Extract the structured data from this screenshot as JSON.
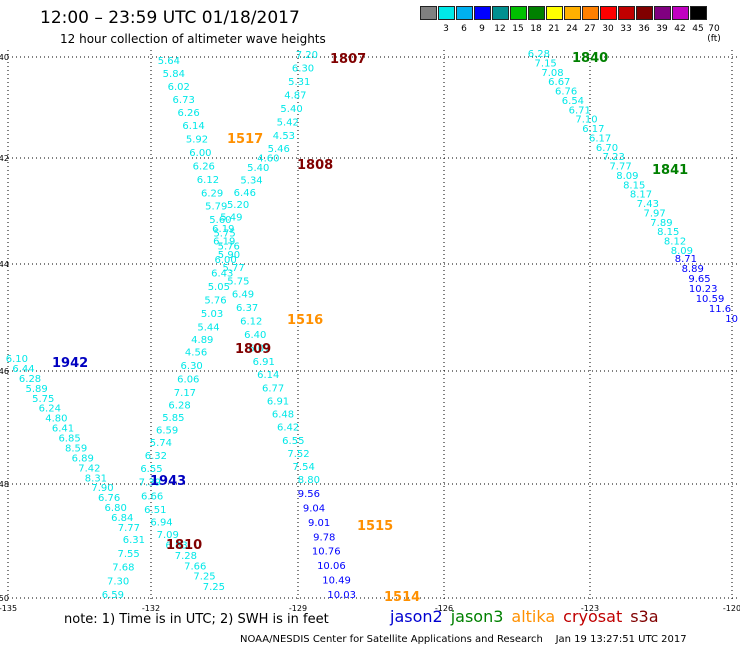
{
  "header": {
    "title": "12:00 – 23:59 UTC 01/18/2017",
    "subtitle": "12 hour collection of altimeter wave heights"
  },
  "colorbar": {
    "unit": "(ft)",
    "colors": [
      "#808080",
      "#00e8e8",
      "#00b0f0",
      "#0000ff",
      "#009090",
      "#00c000",
      "#008000",
      "#ffff00",
      "#ffb000",
      "#ff8000",
      "#ff0000",
      "#c00000",
      "#800000",
      "#800080",
      "#c000c0",
      "#000000"
    ],
    "labels": [
      "3",
      "6",
      "9",
      "12",
      "15",
      "18",
      "21",
      "24",
      "27",
      "30",
      "33",
      "36",
      "39",
      "42",
      "45",
      "70"
    ]
  },
  "axes": {
    "x_ticks": [
      "-135",
      "-132",
      "-129",
      "-126",
      "-123",
      "-120"
    ],
    "y_ticks": [
      "-40",
      "-42",
      "-44",
      "-46",
      "-48",
      "-50"
    ]
  },
  "tracks": [
    {
      "id": "1807",
      "color": "#00e8e8",
      "time": "1807",
      "time_color": "#800000",
      "values": [
        "7.20",
        "6.30",
        "5.31",
        "4.87",
        "5.40",
        "5.42",
        "4.53",
        "5.46",
        "4.60",
        "5.40",
        "5.34",
        "6.46",
        "5.20",
        "5.49",
        "6.19",
        "6.19",
        "5.90",
        "5.77",
        "5.75",
        "6.49",
        "6.37",
        "6.12",
        "6.40",
        "6.07",
        "6.91",
        "6.14",
        "6.77",
        "6.91",
        "6.48",
        "6.42",
        "6.55",
        "7.52",
        "7.54",
        "8.80"
      ]
    },
    {
      "id": "1808",
      "color": "#0000ff",
      "time": "1808",
      "time_color": "#800000",
      "values": [
        "9.56",
        "9.04",
        "9.01",
        "9.78",
        "10.76",
        "10.06",
        "10.49",
        "10.03"
      ]
    },
    {
      "id": "1809",
      "color": "#00e8e8",
      "time": "1809",
      "time_color": "#800000",
      "values": [
        "5.64",
        "5.84",
        "6.02",
        "6.73",
        "6.26",
        "6.14",
        "5.92",
        "6.00",
        "6.26",
        "6.12",
        "6.29",
        "5.79",
        "5.60",
        "5.75",
        "5.76",
        "6.00",
        "6.43",
        "5.05",
        "5.76",
        "5.03",
        "5.44",
        "4.89",
        "4.56",
        "6.30",
        "6.06",
        "7.17",
        "6.28",
        "5.85",
        "6.59",
        "5.74",
        "6.32",
        "6.55",
        "7.39",
        "6.66",
        "6.51",
        "6.94",
        "7.09",
        "6.83",
        "7.28",
        "7.66",
        "7.25",
        "7.25"
      ]
    },
    {
      "id": "1810",
      "color": "#00e8e8",
      "time": "1810",
      "time_color": "#800000",
      "values": [
        "6.31",
        "7.55",
        "7.68",
        "7.30",
        "6.59"
      ]
    },
    {
      "id": "1942",
      "color": "#00e8e8",
      "time": "1942",
      "time_color": "#0000c0",
      "values": [
        "6.10",
        "6.44",
        "6.28",
        "5.89",
        "5.75",
        "6.24",
        "4.80",
        "6.41",
        "6.85",
        "8.59",
        "6.89",
        "7.42",
        "8.31",
        "7.90",
        "6.76",
        "6.80",
        "6.84",
        "7.77"
      ]
    },
    {
      "id": "1943",
      "color": "#0000ff",
      "time": "1943",
      "time_color": "#0000c0",
      "values": []
    },
    {
      "id": "1840",
      "color": "#00e8e8",
      "time": "1840",
      "time_color": "#008000",
      "values": [
        "6.28",
        "7.15",
        "7.08",
        "6.67",
        "6.76",
        "6.54",
        "6.71",
        "7.10",
        "6.17",
        "6.17",
        "6.70",
        "7.23",
        "7.77",
        "8.09",
        "8.15",
        "8.17",
        "7.43",
        "7.97",
        "7.89",
        "8.15",
        "8.12",
        "8.09"
      ]
    },
    {
      "id": "1841",
      "color": "#0000ff",
      "time": "1841",
      "time_color": "#008000",
      "values": [
        "8.71",
        "8.89",
        "9.65",
        "10.23",
        "10.59",
        "11.6",
        "10"
      ]
    },
    {
      "id": "1517",
      "color": "#ff9000",
      "time": "1517",
      "time_color": "#ff9000",
      "values": []
    },
    {
      "id": "1516",
      "color": "#ff9000",
      "time": "1516",
      "time_color": "#ff9000",
      "values": []
    },
    {
      "id": "1515",
      "color": "#ff9000",
      "time": "1515",
      "time_color": "#ff9000",
      "values": []
    },
    {
      "id": "1514",
      "color": "#ff9000",
      "time": "1514",
      "time_color": "#ff9000",
      "values": []
    }
  ],
  "footer": {
    "note": "note:  1) Time is in UTC;  2) SWH is in feet",
    "legend": [
      {
        "label": "jason2",
        "color": "#0000d0"
      },
      {
        "label": "jason3",
        "color": "#008000"
      },
      {
        "label": "altika",
        "color": "#ff9000"
      },
      {
        "label": "cryosat",
        "color": "#c00000"
      },
      {
        "label": "s3a",
        "color": "#800000"
      }
    ],
    "credit": "NOAA/NESDIS Center for Satellite Applications and Research    Jan 19 13:27:51 UTC 2017"
  }
}
